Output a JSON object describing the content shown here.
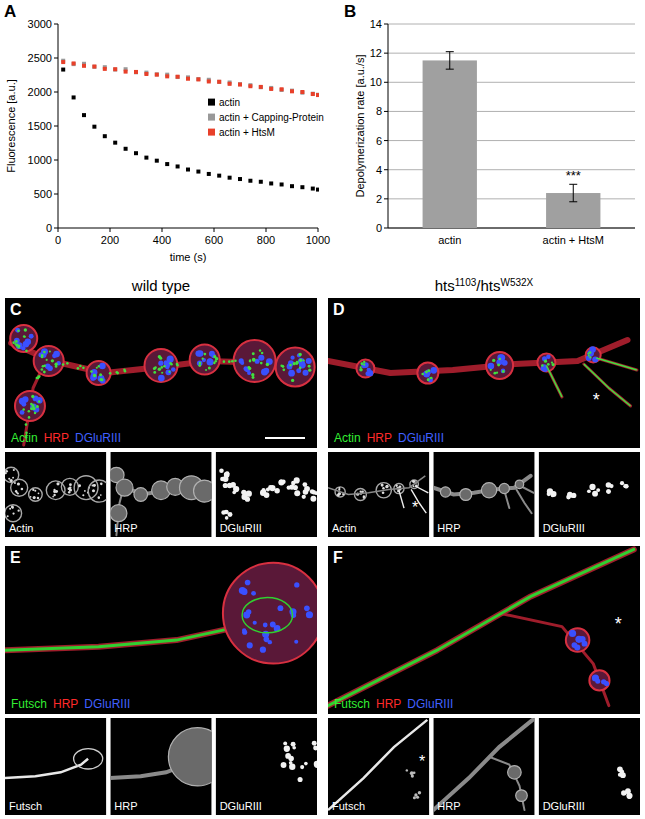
{
  "chart_data": [
    {
      "type": "scatter",
      "title": "A",
      "x_label": "time (s)",
      "y_label": "Fluorescence [a.u.]",
      "x": [
        20,
        60,
        100,
        140,
        180,
        220,
        260,
        300,
        340,
        380,
        420,
        460,
        500,
        540,
        580,
        620,
        660,
        700,
        740,
        780,
        820,
        860,
        900,
        940,
        980,
        1000
      ],
      "series": [
        {
          "name": "actin",
          "color": "#000000",
          "values": [
            2330,
            1920,
            1660,
            1490,
            1350,
            1255,
            1165,
            1100,
            1035,
            990,
            940,
            905,
            860,
            830,
            795,
            770,
            740,
            720,
            695,
            680,
            655,
            640,
            615,
            600,
            580,
            565
          ]
        },
        {
          "name": "actin + Capping-Protein",
          "color": "#999999",
          "values": [
            2460,
            2410,
            2415,
            2370,
            2365,
            2330,
            2335,
            2290,
            2285,
            2260,
            2255,
            2220,
            2215,
            2190,
            2180,
            2150,
            2140,
            2115,
            2100,
            2070,
            2060,
            2030,
            2020,
            1990,
            1975,
            1960
          ]
        },
        {
          "name": "actin + HtsM",
          "color": "#e8402a",
          "values": [
            2440,
            2420,
            2385,
            2375,
            2340,
            2335,
            2300,
            2295,
            2265,
            2255,
            2230,
            2225,
            2195,
            2185,
            2155,
            2150,
            2120,
            2110,
            2085,
            2075,
            2045,
            2040,
            2010,
            2000,
            1970,
            1955
          ]
        }
      ],
      "xlim": [
        0,
        1000
      ],
      "xticks": [
        0,
        200,
        400,
        600,
        800,
        1000
      ],
      "ylim": [
        0,
        3000
      ],
      "yticks": [
        0,
        500,
        1000,
        1500,
        2000,
        2500,
        3000
      ],
      "grid": false,
      "legend": "right",
      "marker": "square"
    },
    {
      "type": "bar",
      "title": "B",
      "y_label": "Depolymerization rate [a.u./s]",
      "categories": [
        "actin",
        "actin + HtsM"
      ],
      "values": [
        11.5,
        2.4
      ],
      "errors": [
        0.6,
        0.6
      ],
      "color": "#a0a0a0",
      "ylim": [
        0,
        14
      ],
      "yticks": [
        0,
        2,
        4,
        6,
        8,
        10,
        12,
        14
      ],
      "grid": true,
      "annotations": [
        {
          "text": "***",
          "category": 1
        }
      ]
    }
  ],
  "figure": {
    "column_headers": [
      {
        "parts": [
          {
            "text": "wild type",
            "sup": false
          }
        ]
      },
      {
        "parts": [
          {
            "text": "hts",
            "sup": false
          },
          {
            "text": "1103",
            "sup": true
          },
          {
            "text": "/hts",
            "sup": false
          },
          {
            "text": "W532X",
            "sup": true
          }
        ]
      }
    ],
    "panels": [
      {
        "label": "C",
        "channels": [
          {
            "name": "Actin",
            "color": "#33ee33"
          },
          {
            "name": "HRP",
            "color": "#ff2a2a"
          },
          {
            "name": "DGluRIII",
            "color": "#4060ff"
          }
        ],
        "main_note": null,
        "inset_notes": [
          null,
          null,
          null
        ]
      },
      {
        "label": "D",
        "channels": [
          {
            "name": "Actin",
            "color": "#33ee33"
          },
          {
            "name": "HRP",
            "color": "#ff2a2a"
          },
          {
            "name": "DGluRIII",
            "color": "#4060ff"
          }
        ],
        "main_note": "*",
        "inset_notes": [
          "*",
          null,
          null
        ]
      },
      {
        "label": "E",
        "channels": [
          {
            "name": "Futsch",
            "color": "#33ee33"
          },
          {
            "name": "HRP",
            "color": "#ff2a2a"
          },
          {
            "name": "DGluRIII",
            "color": "#4060ff"
          }
        ],
        "main_note": null,
        "inset_notes": [
          null,
          null,
          null
        ]
      },
      {
        "label": "F",
        "channels": [
          {
            "name": "Futsch",
            "color": "#33ee33"
          },
          {
            "name": "HRP",
            "color": "#ff2a2a"
          },
          {
            "name": "DGluRIII",
            "color": "#4060ff"
          }
        ],
        "main_note": "*",
        "inset_notes": [
          "*",
          null,
          null
        ]
      }
    ]
  }
}
